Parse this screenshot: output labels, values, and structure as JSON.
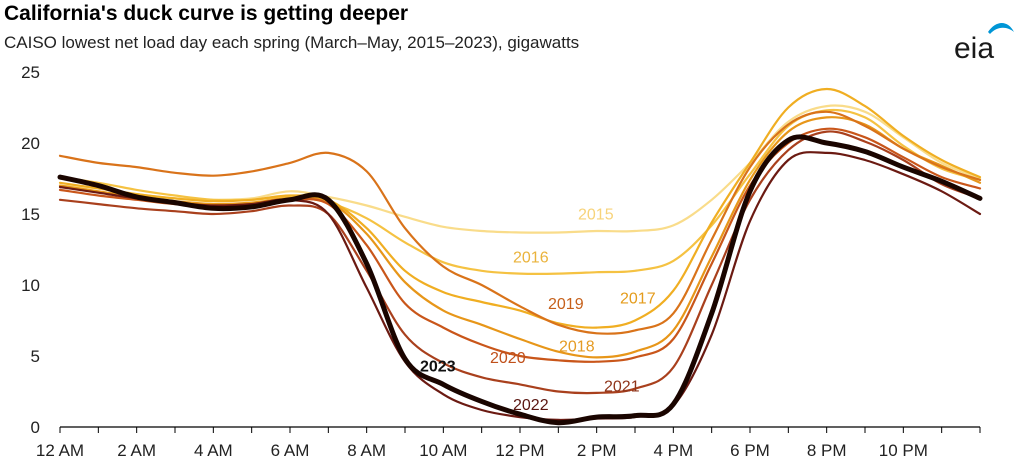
{
  "header": {
    "title": "California's duck curve is getting deeper",
    "subtitle": "CAISO lowest net load day each spring (March–May, 2015–2023), gigawatts"
  },
  "logo": {
    "text": "eia",
    "icon": "eia-logo-swoosh",
    "color": "#0096d6"
  },
  "chart_data": {
    "type": "line",
    "title": "California's duck curve is getting deeper",
    "subtitle": "CAISO lowest net load day each spring (March–May, 2015–2023), gigawatts",
    "xlabel": "",
    "ylabel": "",
    "units": "gigawatts",
    "x": [
      0,
      1,
      2,
      3,
      4,
      5,
      6,
      7,
      8,
      9,
      10,
      11,
      12,
      13,
      14,
      15,
      16,
      17,
      18,
      19,
      20,
      21,
      22,
      23,
      24
    ],
    "xlim": [
      0,
      24
    ],
    "x_ticks": [
      "12 AM",
      "2 AM",
      "4 AM",
      "6 AM",
      "8 AM",
      "10 AM",
      "12 PM",
      "2 PM",
      "4 PM",
      "6 PM",
      "8 PM",
      "10 PM"
    ],
    "ylim": [
      0,
      25
    ],
    "y_ticks": [
      "0",
      "5",
      "10",
      "15",
      "20",
      "25"
    ],
    "grid": false,
    "legend": "direct labels on lines",
    "series": [
      {
        "name": "2015",
        "color": "#f9dc8a",
        "width": 2.2,
        "values": [
          17.0,
          16.8,
          16.4,
          16.1,
          16.0,
          16.1,
          16.6,
          16.2,
          15.6,
          14.8,
          14.1,
          13.8,
          13.7,
          13.7,
          13.8,
          13.8,
          14.2,
          16.0,
          18.6,
          21.5,
          22.6,
          22.2,
          20.4,
          18.6,
          17.5
        ]
      },
      {
        "name": "2016",
        "color": "#f5c242",
        "width": 2.2,
        "values": [
          17.6,
          17.2,
          16.7,
          16.3,
          16.0,
          16.0,
          16.2,
          15.8,
          14.7,
          13.0,
          11.6,
          11.0,
          10.8,
          10.8,
          10.9,
          11.0,
          11.7,
          14.2,
          17.8,
          21.2,
          22.3,
          21.8,
          19.8,
          18.2,
          17.4
        ]
      },
      {
        "name": "2017",
        "color": "#f0ae22",
        "width": 2.2,
        "values": [
          17.2,
          16.8,
          16.4,
          16.1,
          15.9,
          16.0,
          16.3,
          16.0,
          14.0,
          11.0,
          9.5,
          8.8,
          8.2,
          7.3,
          7.0,
          7.5,
          9.6,
          14.4,
          18.6,
          22.5,
          23.8,
          22.6,
          20.5,
          18.8,
          17.6
        ]
      },
      {
        "name": "2018",
        "color": "#e79619",
        "width": 2.2,
        "values": [
          17.0,
          16.6,
          16.2,
          15.9,
          15.7,
          15.8,
          16.1,
          15.9,
          13.6,
          10.2,
          8.2,
          7.2,
          6.2,
          5.3,
          4.9,
          5.3,
          6.8,
          12.0,
          17.4,
          20.8,
          21.8,
          21.3,
          19.6,
          18.4,
          17.2
        ]
      },
      {
        "name": "2019",
        "color": "#d9731a",
        "width": 2.2,
        "values": [
          19.1,
          18.6,
          18.3,
          17.9,
          17.7,
          18.0,
          18.6,
          19.3,
          18.0,
          14.0,
          11.3,
          10.0,
          8.5,
          7.2,
          6.6,
          6.8,
          8.0,
          13.2,
          18.3,
          21.3,
          22.2,
          21.2,
          19.6,
          18.3,
          17.4
        ]
      },
      {
        "name": "2020",
        "color": "#c9561a",
        "width": 2.2,
        "values": [
          16.7,
          16.3,
          16.0,
          15.7,
          15.6,
          15.7,
          16.0,
          15.7,
          12.8,
          8.7,
          7.0,
          5.8,
          5.0,
          4.7,
          4.6,
          4.9,
          6.2,
          11.5,
          17.0,
          20.0,
          21.0,
          20.4,
          19.0,
          17.6,
          16.8
        ]
      },
      {
        "name": "2021",
        "color": "#a9401d",
        "width": 2.2,
        "values": [
          16.0,
          15.7,
          15.4,
          15.2,
          15.0,
          15.2,
          15.6,
          15.0,
          11.0,
          6.5,
          4.5,
          3.5,
          3.0,
          2.5,
          2.4,
          2.7,
          4.2,
          10.0,
          16.0,
          19.5,
          20.8,
          20.1,
          18.8,
          17.1,
          16.1
        ]
      },
      {
        "name": "2022",
        "color": "#6b1a12",
        "width": 2.2,
        "values": [
          16.9,
          16.5,
          16.1,
          15.8,
          15.6,
          15.7,
          16.0,
          15.0,
          9.8,
          4.6,
          2.3,
          1.2,
          0.7,
          0.5,
          0.6,
          0.7,
          1.5,
          6.5,
          14.5,
          18.8,
          19.3,
          18.8,
          17.8,
          16.6,
          15.0
        ]
      },
      {
        "name": "2023",
        "color": "#1a0500",
        "width": 5.0,
        "values": [
          17.6,
          17.0,
          16.2,
          15.8,
          15.4,
          15.5,
          16.0,
          16.0,
          11.5,
          4.8,
          3.0,
          1.8,
          0.9,
          0.3,
          0.7,
          0.8,
          1.6,
          8.0,
          16.6,
          20.2,
          20.0,
          19.4,
          18.3,
          17.3,
          16.1
        ]
      }
    ],
    "labels": [
      {
        "name": "2015",
        "text": "2015",
        "color": "#f7d37a"
      },
      {
        "name": "2016",
        "text": "2016",
        "color": "#eab33c"
      },
      {
        "name": "2017",
        "text": "2017",
        "color": "#e49c1c"
      },
      {
        "name": "2018",
        "text": "2018",
        "color": "#e59b24"
      },
      {
        "name": "2019",
        "text": "2019",
        "color": "#c6601a"
      },
      {
        "name": "2020",
        "text": "2020",
        "color": "#c0501b"
      },
      {
        "name": "2021",
        "text": "2021",
        "color": "#8f351b"
      },
      {
        "name": "2022",
        "text": "2022",
        "color": "#5a1510"
      },
      {
        "name": "2023",
        "text": "2023",
        "color": "#111111",
        "bold": true
      }
    ]
  }
}
